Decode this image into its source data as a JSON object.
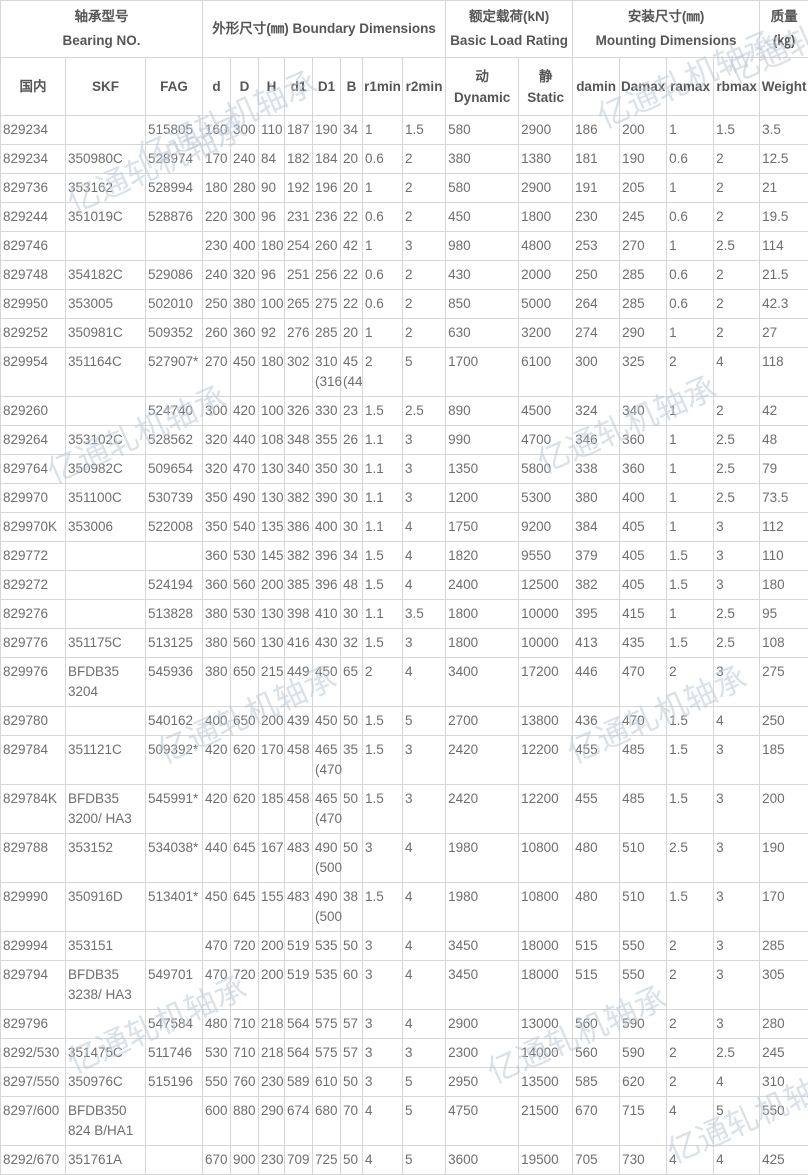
{
  "watermark_text": "亿通轧机轴承",
  "table": {
    "header_groups": {
      "bearing_no": {
        "zh": "轴承型号",
        "en": "Bearing NO."
      },
      "boundary": {
        "zh": "外形尺寸(㎜)",
        "en": "Boundary Dimensions"
      },
      "load_rating": {
        "zh": "额定载荷(kN)",
        "en": "Basic Load Rating"
      },
      "mounting": {
        "zh": "安装尺寸(㎜)",
        "en": "Mounting Dimensions"
      },
      "weight": {
        "zh": "质量",
        "en": "(㎏)"
      }
    },
    "subheaders": {
      "domestic": "国内",
      "skf": "SKF",
      "fag": "FAG",
      "d": "d",
      "D": "D",
      "H": "H",
      "d1": "d1",
      "D1": "D1",
      "B": "B",
      "r1min": "r1min",
      "r2min": "r2min",
      "dynamic_zh": "动",
      "dynamic_en": "Dynamic",
      "static_zh": "静",
      "static_en": "Static",
      "damin": "damin",
      "Damax": "Damax",
      "ramax": "ramax",
      "rbmax": "rbmax",
      "weight": "Weight"
    },
    "column_keys": [
      "domestic",
      "skf",
      "fag",
      "d",
      "D",
      "H",
      "d1",
      "D1",
      "B",
      "r1min",
      "r2min",
      "dynamic",
      "static",
      "damin",
      "Damax",
      "ramax",
      "rbmax",
      "weight"
    ],
    "rows": [
      [
        "829234",
        "",
        "515805",
        "160",
        "300",
        "110",
        "187",
        "190",
        "34",
        "1",
        "1.5",
        "580",
        "2900",
        "186",
        "200",
        "1",
        "1.5",
        "3.5"
      ],
      [
        "829234",
        "350980C",
        "528974",
        "170",
        "240",
        "84",
        "182",
        "184",
        "20",
        "0.6",
        "2",
        "380",
        "1380",
        "181",
        "190",
        "0.6",
        "2",
        "12.5"
      ],
      [
        "829736",
        "353162",
        "528994",
        "180",
        "280",
        "90",
        "192",
        "196",
        "20",
        "1",
        "2",
        "580",
        "2900",
        "191",
        "205",
        "1",
        "2",
        "21"
      ],
      [
        "829244",
        "351019C",
        "528876",
        "220",
        "300",
        "96",
        "231",
        "236",
        "22",
        "0.6",
        "2",
        "450",
        "1800",
        "230",
        "245",
        "0.6",
        "2",
        "19.5"
      ],
      [
        "829746",
        "",
        "",
        "230",
        "400",
        "180",
        "254",
        "260",
        "42",
        "1",
        "3",
        "980",
        "4800",
        "253",
        "270",
        "1",
        "2.5",
        "114"
      ],
      [
        "829748",
        "354182C",
        "529086",
        "240",
        "320",
        "96",
        "251",
        "256",
        "22",
        "0.6",
        "2",
        "430",
        "2000",
        "250",
        "285",
        "0.6",
        "2",
        "21.5"
      ],
      [
        "829950",
        "353005",
        "502010",
        "250",
        "380",
        "100",
        "265",
        "275",
        "22",
        "0.6",
        "2",
        "850",
        "5000",
        "264",
        "285",
        "0.6",
        "2",
        "42.3"
      ],
      [
        "829252",
        "350981C",
        "509352",
        "260",
        "360",
        "92",
        "276",
        "285",
        "20",
        "1",
        "2",
        "630",
        "3200",
        "274",
        "290",
        "1",
        "2",
        "27"
      ],
      [
        "829954",
        "351164C",
        "527907*",
        "270",
        "450",
        "180",
        "302",
        "310 (316",
        "45 (44",
        "2",
        "5",
        "1700",
        "6100",
        "300",
        "325",
        "2",
        "4",
        "118"
      ],
      [
        "829260",
        "",
        "524740",
        "300",
        "420",
        "100",
        "326",
        "330",
        "23",
        "1.5",
        "2.5",
        "890",
        "4500",
        "324",
        "340",
        "1",
        "2",
        "42"
      ],
      [
        "829264",
        "353102C",
        "528562",
        "320",
        "440",
        "108",
        "348",
        "355",
        "26",
        "1.1",
        "3",
        "990",
        "4700",
        "346",
        "360",
        "1",
        "2.5",
        "48"
      ],
      [
        "829764",
        "350982C",
        "509654",
        "320",
        "470",
        "130",
        "340",
        "350",
        "30",
        "1.1",
        "3",
        "1350",
        "5800",
        "338",
        "360",
        "1",
        "2.5",
        "79"
      ],
      [
        "829970",
        "351100C",
        "530739",
        "350",
        "490",
        "130",
        "382",
        "390",
        "30",
        "1.1",
        "3",
        "1200",
        "5300",
        "380",
        "400",
        "1",
        "2.5",
        "73.5"
      ],
      [
        "829970K",
        "353006",
        "522008",
        "350",
        "540",
        "135",
        "386",
        "400",
        "30",
        "1.1",
        "4",
        "1750",
        "9200",
        "384",
        "405",
        "1",
        "3",
        "112"
      ],
      [
        "829772",
        "",
        "",
        "360",
        "530",
        "145",
        "382",
        "396",
        "34",
        "1.5",
        "4",
        "1820",
        "9550",
        "379",
        "405",
        "1.5",
        "3",
        "110"
      ],
      [
        "829272",
        "",
        "524194",
        "360",
        "560",
        "200",
        "385",
        "396",
        "48",
        "1.5",
        "4",
        "2400",
        "12500",
        "382",
        "405",
        "1.5",
        "3",
        "180"
      ],
      [
        "829276",
        "",
        "513828",
        "380",
        "530",
        "130",
        "398",
        "410",
        "30",
        "1.1",
        "3.5",
        "1800",
        "10000",
        "395",
        "415",
        "1",
        "2.5",
        "95"
      ],
      [
        "829776",
        "351175C",
        "513125",
        "380",
        "560",
        "130",
        "416",
        "430",
        "32",
        "1.5",
        "3",
        "1800",
        "10000",
        "413",
        "435",
        "1.5",
        "2.5",
        "108"
      ],
      [
        "829976",
        "BFDB35 3204",
        "545936",
        "380",
        "650",
        "215",
        "449",
        "450",
        "65",
        "2",
        "4",
        "3400",
        "17200",
        "446",
        "470",
        "2",
        "3",
        "275"
      ],
      [
        "829780",
        "",
        "540162",
        "400",
        "650",
        "200",
        "439",
        "450",
        "50",
        "1.5",
        "5",
        "2700",
        "13800",
        "436",
        "470",
        "1.5",
        "4",
        "250"
      ],
      [
        "829784",
        "351121C",
        "509392*",
        "420",
        "620",
        "170",
        "458",
        "465 (470",
        "35",
        "1.5",
        "3",
        "2420",
        "12200",
        "455",
        "485",
        "1.5",
        "3",
        "185"
      ],
      [
        "829784K",
        "BFDB35 3200/ HA3",
        "545991*",
        "420",
        "620",
        "185",
        "458",
        "465 (470",
        "50",
        "1.5",
        "3",
        "2420",
        "12200",
        "455",
        "485",
        "1.5",
        "3",
        "200"
      ],
      [
        "829788",
        "353152",
        "534038*",
        "440",
        "645",
        "167",
        "483",
        "490 (500",
        "50",
        "3",
        "4",
        "1980",
        "10800",
        "480",
        "510",
        "2.5",
        "3",
        "190"
      ],
      [
        "829990",
        "350916D",
        "513401*",
        "450",
        "645",
        "155",
        "483",
        "490 (500",
        "38",
        "1.5",
        "4",
        "1980",
        "10800",
        "480",
        "510",
        "1.5",
        "3",
        "170"
      ],
      [
        "829994",
        "353151",
        "",
        "470",
        "720",
        "200",
        "519",
        "535",
        "50",
        "3",
        "4",
        "3450",
        "18000",
        "515",
        "550",
        "2",
        "3",
        "285"
      ],
      [
        "829794",
        "BFDB35 3238/ HA3",
        "549701",
        "470",
        "720",
        "200",
        "519",
        "535",
        "60",
        "3",
        "4",
        "3450",
        "18000",
        "515",
        "550",
        "2",
        "3",
        "305"
      ],
      [
        "829796",
        "",
        "547584",
        "480",
        "710",
        "218",
        "564",
        "575",
        "57",
        "3",
        "4",
        "2900",
        "13000",
        "560",
        "590",
        "2",
        "3",
        "280"
      ],
      [
        "8292/530",
        "351475C",
        "511746",
        "530",
        "710",
        "218",
        "564",
        "575",
        "57",
        "3",
        "3",
        "2300",
        "14000",
        "560",
        "590",
        "2",
        "2.5",
        "245"
      ],
      [
        "8297/550",
        "350976C",
        "515196",
        "550",
        "760",
        "230",
        "589",
        "610",
        "50",
        "3",
        "5",
        "2950",
        "13500",
        "585",
        "620",
        "2",
        "4",
        "310"
      ],
      [
        "8297/600",
        "BFDB350 824 B/HA1",
        "",
        "600",
        "880",
        "290",
        "674",
        "680",
        "70",
        "4",
        "5",
        "4750",
        "21500",
        "670",
        "715",
        "4",
        "5",
        "550"
      ],
      [
        "8292/670",
        "351761A",
        "",
        "670",
        "900",
        "230",
        "709",
        "725",
        "50",
        "4",
        "5",
        "3600",
        "19500",
        "705",
        "730",
        "4",
        "4",
        "425"
      ]
    ]
  }
}
